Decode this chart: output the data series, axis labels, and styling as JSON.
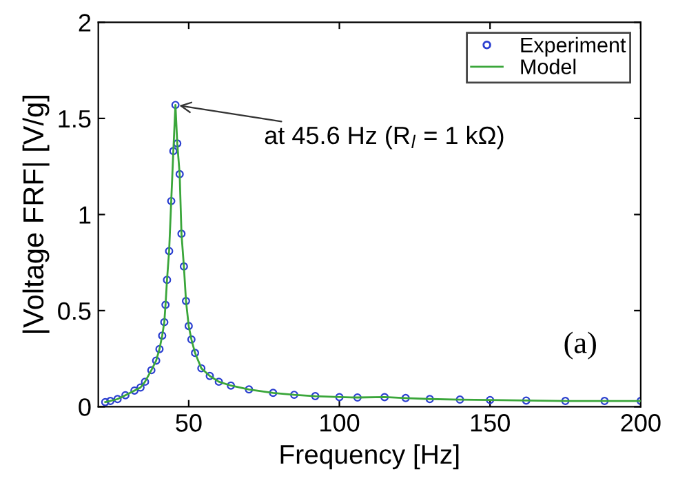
{
  "chart_data": {
    "type": "line",
    "xlabel": "Frequency [Hz]",
    "ylabel": "|Voltage FRF| [V/g]",
    "xlim": [
      20,
      200
    ],
    "xticks": [
      50,
      100,
      150,
      200
    ],
    "ylim": [
      0,
      2
    ],
    "yticks": [
      0,
      0.5,
      1,
      1.5,
      2
    ],
    "grid": false,
    "legend": "top right",
    "x": [
      22.3,
      24,
      26.4,
      29,
      32,
      34,
      35.5,
      37.6,
      39.2,
      40.3,
      41.2,
      41.9,
      42.3,
      42.8,
      43.5,
      44.2,
      44.9,
      45.6,
      46.2,
      47.0,
      47.6,
      48.4,
      49.1,
      50,
      50.9,
      52.1,
      54.2,
      57,
      60,
      64,
      70,
      78,
      85,
      92,
      100,
      106,
      115,
      122,
      130,
      140,
      150,
      162,
      175,
      188,
      200
    ],
    "series": [
      {
        "name": "Experiment",
        "type": "scatter",
        "marker": "circle",
        "color": "#2b3fd0",
        "values": [
          0.024,
          0.03,
          0.04,
          0.06,
          0.084,
          0.1,
          0.13,
          0.19,
          0.24,
          0.3,
          0.37,
          0.44,
          0.53,
          0.66,
          0.81,
          1.07,
          1.33,
          1.57,
          1.37,
          1.21,
          0.9,
          0.73,
          0.55,
          0.42,
          0.35,
          0.28,
          0.2,
          0.16,
          0.13,
          0.11,
          0.09,
          0.072,
          0.062,
          0.055,
          0.05,
          0.048,
          0.05,
          0.045,
          0.04,
          0.037,
          0.035,
          0.032,
          0.03,
          0.03,
          0.03
        ]
      },
      {
        "name": "Model",
        "marker": "none",
        "color": "#3aa63a",
        "values": [
          0.024,
          0.03,
          0.04,
          0.06,
          0.084,
          0.1,
          0.13,
          0.19,
          0.24,
          0.3,
          0.37,
          0.44,
          0.53,
          0.66,
          0.81,
          1.07,
          1.33,
          1.57,
          1.37,
          1.21,
          0.9,
          0.73,
          0.55,
          0.42,
          0.35,
          0.28,
          0.2,
          0.16,
          0.13,
          0.11,
          0.09,
          0.072,
          0.062,
          0.055,
          0.05,
          0.048,
          0.05,
          0.045,
          0.04,
          0.037,
          0.035,
          0.032,
          0.03,
          0.03,
          0.03
        ]
      }
    ],
    "annotations": [
      {
        "text": "at 45.6 Hz (R$_{l}$ = 1 kΩ)",
        "x": 45.6,
        "y": 1.57
      },
      "(a)"
    ]
  }
}
